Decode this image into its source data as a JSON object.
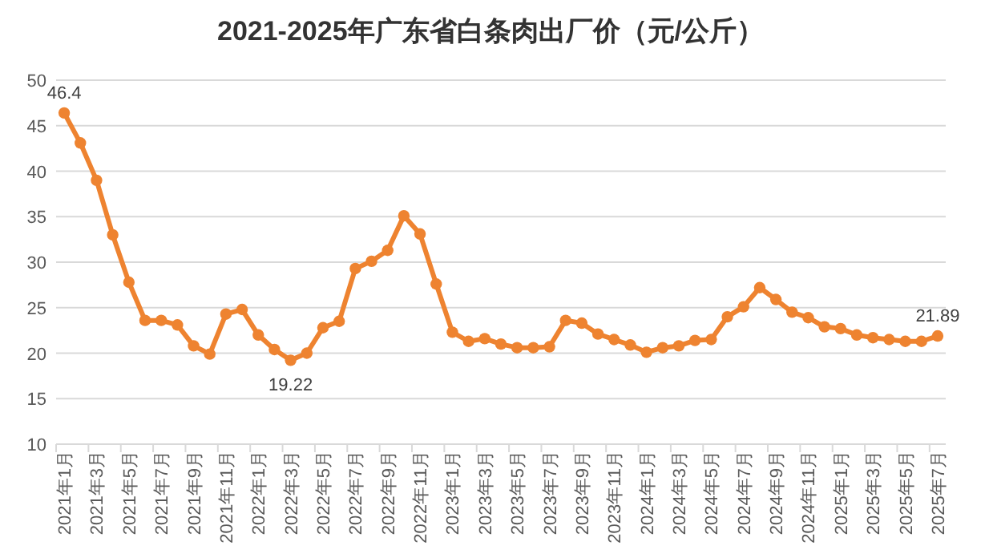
{
  "chart_data": {
    "type": "line",
    "title": "2021-2025年广东省白条肉出厂价（元/公斤）",
    "categories": [
      "2021年1月",
      null,
      "2021年3月",
      null,
      "2021年5月",
      null,
      "2021年7月",
      null,
      "2021年9月",
      null,
      "2021年11月",
      null,
      "2022年1月",
      null,
      "2022年3月",
      null,
      "2022年5月",
      null,
      "2022年7月",
      null,
      "2022年9月",
      null,
      "2022年11月",
      null,
      "2023年1月",
      null,
      "2023年3月",
      null,
      "2023年5月",
      null,
      "2023年7月",
      null,
      "2023年9月",
      null,
      "2023年11月",
      null,
      "2024年1月",
      null,
      "2024年3月",
      null,
      "2024年5月",
      null,
      "2024年7月",
      null,
      "2024年9月",
      null,
      "2024年11月",
      null,
      "2025年1月",
      null,
      "2025年3月",
      null,
      "2025年5月",
      null,
      "2025年7月"
    ],
    "series": [
      {
        "color": "#ee8330",
        "values": [
          46.4,
          43.1,
          39,
          33,
          27.8,
          23.6,
          23.6,
          23.1,
          20.8,
          19.9,
          24.3,
          24.8,
          22.0,
          20.4,
          19.22,
          20.0,
          22.8,
          23.5,
          29.3,
          30.1,
          31.3,
          35.1,
          33.1,
          27.6,
          22.3,
          21.3,
          21.6,
          21.0,
          20.6,
          20.6,
          20.7,
          23.6,
          23.3,
          22.1,
          21.5,
          20.9,
          20.1,
          20.6,
          20.8,
          21.4,
          21.5,
          24.0,
          25.1,
          27.2,
          25.9,
          24.5,
          23.9,
          22.9,
          22.7,
          22.0,
          21.7,
          21.5,
          21.3,
          21.3,
          21.89
        ],
        "value_labels": [
          "46.4",
          null,
          null,
          null,
          null,
          null,
          null,
          null,
          null,
          null,
          null,
          null,
          null,
          null,
          "19.22",
          null,
          null,
          null,
          null,
          null,
          null,
          null,
          null,
          null,
          null,
          null,
          null,
          null,
          null,
          null,
          null,
          null,
          null,
          null,
          null,
          null,
          null,
          null,
          null,
          null,
          null,
          null,
          null,
          null,
          null,
          null,
          null,
          null,
          null,
          null,
          null,
          null,
          null,
          null,
          "21.89"
        ]
      }
    ],
    "ylim": [
      10,
      50
    ],
    "yticks": [
      10,
      15,
      20,
      25,
      30,
      35,
      40,
      45,
      50
    ],
    "grid": "y",
    "marker": "circle",
    "line_style": "solid"
  }
}
